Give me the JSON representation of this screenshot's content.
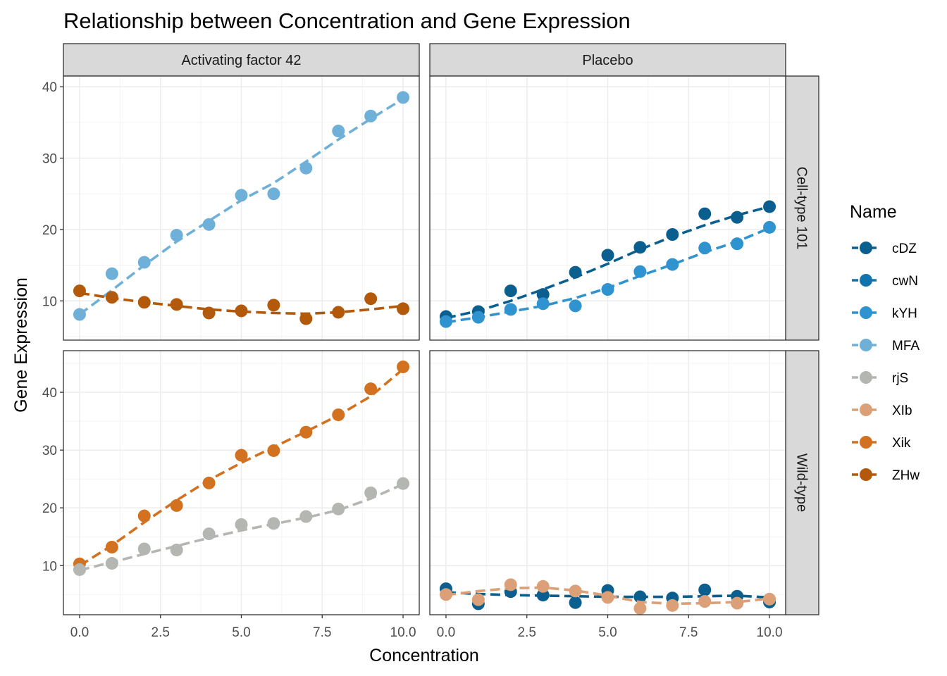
{
  "chart_data": {
    "type": "line",
    "title": "Relationship between Concentration and Gene Expression",
    "xlabel": "Concentration",
    "ylabel": "Gene Expression",
    "legend_title": "Name",
    "legend_position": "right",
    "grid": true,
    "xlim": [
      -0.5,
      10.5
    ],
    "xticks": [
      0.0,
      2.5,
      5.0,
      7.5,
      10.0
    ],
    "xtick_labels": [
      "0.0",
      "2.5",
      "5.0",
      "7.5",
      "10.0"
    ],
    "col_facets": [
      "Activating factor 42",
      "Placebo"
    ],
    "row_facets": [
      {
        "label": "Cell-type 101",
        "ylim": [
          4.5,
          41.5
        ],
        "yticks": [
          10,
          20,
          30,
          40
        ],
        "ytick_labels": [
          "10",
          "20",
          "30",
          "40"
        ]
      },
      {
        "label": "Wild-type",
        "ylim": [
          1.5,
          47.2
        ],
        "yticks": [
          10,
          20,
          30,
          40
        ],
        "ytick_labels": [
          "10",
          "20",
          "30",
          "40"
        ]
      }
    ],
    "legend": [
      {
        "name": "cDZ",
        "color": "#0b5f8f"
      },
      {
        "name": "cwN",
        "color": "#1273ad"
      },
      {
        "name": "kYH",
        "color": "#2f93cf"
      },
      {
        "name": "MFA",
        "color": "#6fb0d8"
      },
      {
        "name": "rjS",
        "color": "#b4b6b2"
      },
      {
        "name": "XIb",
        "color": "#dba077"
      },
      {
        "name": "Xik",
        "color": "#d2711f"
      },
      {
        "name": "ZHw",
        "color": "#b3590c"
      }
    ],
    "x": [
      0,
      1,
      2,
      3,
      4,
      5,
      6,
      7,
      8,
      9,
      10
    ],
    "series": [
      {
        "name": "MFA",
        "row": 0,
        "col": 0,
        "color": "#6fb0d8",
        "values": [
          8.1,
          13.8,
          15.4,
          19.2,
          20.7,
          24.8,
          25.0,
          28.6,
          33.8,
          35.9,
          38.5
        ],
        "fit": [
          8.1,
          11.5,
          15.0,
          18.3,
          21.2,
          24.1,
          26.5,
          29.5,
          32.6,
          35.5,
          38.3
        ]
      },
      {
        "name": "ZHw",
        "row": 0,
        "col": 0,
        "color": "#b3590c",
        "values": [
          11.4,
          10.5,
          9.8,
          9.5,
          8.3,
          8.6,
          9.4,
          7.5,
          8.4,
          10.3,
          8.9
        ],
        "fit": [
          11.1,
          10.4,
          9.8,
          9.3,
          8.8,
          8.5,
          8.3,
          8.2,
          8.4,
          8.8,
          9.3
        ]
      },
      {
        "name": "cDZ",
        "row": 0,
        "col": 1,
        "color": "#0b5f8f",
        "values": [
          7.8,
          8.5,
          11.4,
          10.9,
          14.0,
          16.4,
          17.5,
          19.3,
          22.2,
          21.7,
          23.2
        ],
        "fit": [
          7.6,
          8.6,
          10.0,
          11.6,
          13.3,
          15.2,
          17.2,
          19.0,
          20.6,
          22.0,
          23.2
        ]
      },
      {
        "name": "kYH",
        "row": 0,
        "col": 1,
        "color": "#2f93cf",
        "values": [
          7.1,
          7.7,
          8.8,
          9.6,
          9.3,
          11.6,
          14.1,
          15.1,
          17.4,
          18.0,
          20.3
        ],
        "fit": [
          7.0,
          7.7,
          8.5,
          9.3,
          10.4,
          11.8,
          13.5,
          15.1,
          16.8,
          18.3,
          20.2
        ]
      },
      {
        "name": "Xik",
        "row": 1,
        "col": 0,
        "color": "#d2711f",
        "values": [
          10.3,
          13.2,
          18.6,
          20.4,
          24.3,
          29.1,
          29.9,
          33.1,
          36.1,
          40.6,
          44.4
        ],
        "fit": [
          10.0,
          13.5,
          17.5,
          21.3,
          24.8,
          27.8,
          30.5,
          33.2,
          36.0,
          39.3,
          44.0
        ]
      },
      {
        "name": "rjS",
        "row": 1,
        "col": 0,
        "color": "#b4b6b2",
        "values": [
          9.3,
          10.4,
          12.9,
          12.7,
          15.5,
          17.1,
          17.3,
          18.5,
          19.8,
          22.6,
          24.2
        ],
        "fit": [
          9.2,
          10.6,
          12.0,
          13.4,
          14.8,
          16.1,
          17.2,
          18.3,
          19.6,
          21.6,
          24.1
        ]
      },
      {
        "name": "cDZ",
        "row": 1,
        "col": 1,
        "color": "#0b5f8f",
        "values": [
          6.0,
          3.4,
          5.5,
          4.9,
          3.6,
          5.7,
          4.6,
          4.4,
          5.8,
          4.7,
          3.7
        ],
        "fit": [
          5.4,
          5.1,
          4.9,
          4.8,
          4.7,
          4.6,
          4.6,
          4.6,
          4.7,
          4.8,
          4.5
        ]
      },
      {
        "name": "XIb",
        "row": 1,
        "col": 1,
        "color": "#dba077",
        "values": [
          5.0,
          4.1,
          6.7,
          6.4,
          5.6,
          4.5,
          2.6,
          3.1,
          3.8,
          3.5,
          4.2
        ],
        "fit": [
          4.9,
          5.6,
          6.1,
          6.2,
          5.7,
          4.8,
          3.7,
          3.4,
          3.5,
          3.7,
          4.3
        ]
      }
    ]
  }
}
